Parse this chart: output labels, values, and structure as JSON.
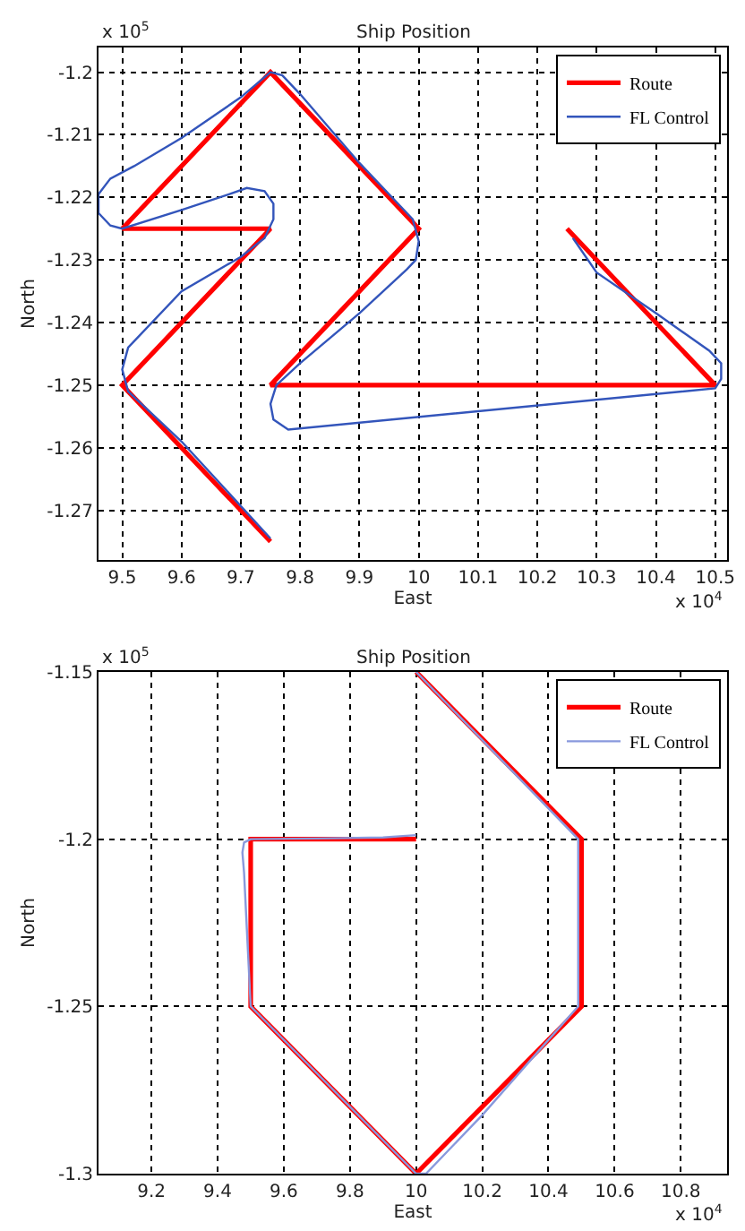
{
  "chart_data": [
    {
      "type": "line",
      "title": "Ship Position",
      "xlabel": "East",
      "ylabel": "North",
      "xlim": [
        9.46,
        10.52
      ],
      "ylim": [
        -1.278,
        -1.196
      ],
      "xticks": [
        9.5,
        9.6,
        9.7,
        9.8,
        9.9,
        10,
        10.1,
        10.2,
        10.3,
        10.4,
        10.5
      ],
      "yticks": [
        -1.2,
        -1.21,
        -1.22,
        -1.23,
        -1.24,
        -1.25,
        -1.26,
        -1.27
      ],
      "grid": true,
      "legend": "top right",
      "line_style": "solid",
      "annotations": [
        "x 10$^{5}$",
        "x 10$^{4}$"
      ],
      "series": [
        {
          "name": "Route",
          "color": "#ff0000",
          "x": [
            9.75,
            9.5,
            9.75,
            9.5,
            9.75,
            10.0,
            9.75,
            10.5,
            10.25
          ],
          "values": [
            -1.275,
            -1.25,
            -1.225,
            -1.225,
            -1.2,
            -1.225,
            -1.25,
            -1.25,
            -1.225
          ]
        },
        {
          "name": "FL Control",
          "color": "#3355bb",
          "x": [
            9.75,
            9.6,
            9.51,
            9.5,
            9.51,
            9.6,
            9.7,
            9.74,
            9.755,
            9.755,
            9.74,
            9.71,
            9.68,
            9.6,
            9.5,
            9.48,
            9.46,
            9.46,
            9.48,
            9.52,
            9.6,
            9.7,
            9.75,
            9.77,
            9.8,
            9.9,
            9.99,
            10.0,
            9.995,
            9.98,
            9.9,
            9.8,
            9.76,
            9.75,
            9.755,
            9.78,
            10.5,
            10.51,
            10.51,
            10.49,
            10.4,
            10.3,
            10.26
          ],
          "values": [
            -1.2745,
            -1.259,
            -1.251,
            -1.2475,
            -1.244,
            -1.235,
            -1.2295,
            -1.2265,
            -1.2235,
            -1.221,
            -1.219,
            -1.2185,
            -1.2195,
            -1.222,
            -1.225,
            -1.2245,
            -1.2225,
            -1.2195,
            -1.217,
            -1.215,
            -1.2105,
            -1.204,
            -1.2,
            -1.2005,
            -1.2035,
            -1.2145,
            -1.2235,
            -1.227,
            -1.23,
            -1.2315,
            -1.2385,
            -1.2465,
            -1.25,
            -1.253,
            -1.2555,
            -1.2571,
            -1.2505,
            -1.249,
            -1.2465,
            -1.2445,
            -1.2385,
            -1.232,
            -1.2265
          ]
        }
      ]
    },
    {
      "type": "line",
      "title": "Ship Position",
      "xlabel": "East",
      "ylabel": "North",
      "xlim": [
        9.04,
        10.94
      ],
      "ylim": [
        -1.3,
        -1.15
      ],
      "xticks": [
        9.2,
        9.4,
        9.6,
        9.8,
        10,
        10.2,
        10.4,
        10.6,
        10.8
      ],
      "yticks": [
        -1.15,
        -1.2,
        -1.25,
        -1.3
      ],
      "grid": true,
      "legend": "top right",
      "line_style": "solid",
      "annotations": [
        "x 10$^{5}$",
        "x 10$^{4}$"
      ],
      "series": [
        {
          "name": "Route",
          "color": "#ff0000",
          "x": [
            10.0,
            10.5,
            10.5,
            10.0,
            9.5,
            9.5,
            10.0
          ],
          "values": [
            -1.15,
            -1.2,
            -1.25,
            -1.3,
            -1.25,
            -1.2,
            -1.2
          ]
        },
        {
          "name": "FL Control",
          "color": "#8899dd",
          "x": [
            10.0,
            10.49,
            10.49,
            10.4,
            10.2,
            10.03,
            10.0,
            9.5,
            9.49,
            9.48,
            9.475,
            9.48,
            9.5,
            9.7,
            9.9,
            10.0
          ],
          "values": [
            -1.15,
            -1.2,
            -1.25,
            -1.26,
            -1.2825,
            -1.3,
            -1.3,
            -1.25,
            -1.23,
            -1.21,
            -1.204,
            -1.201,
            -1.2,
            -1.1998,
            -1.1995,
            -1.1988
          ]
        }
      ]
    }
  ]
}
